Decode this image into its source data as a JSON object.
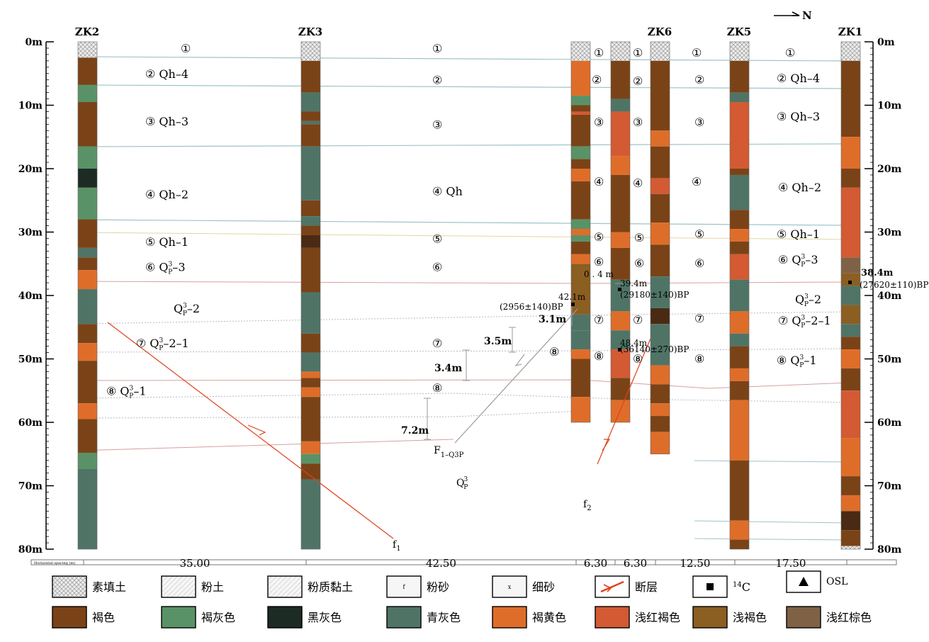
{
  "north_label": "N",
  "depth_ticks": [
    "0m",
    "10m",
    "20m",
    "30m",
    "40m",
    "50m",
    "60m",
    "70m",
    "80m"
  ],
  "boreholes": [
    {
      "id": "ZK2",
      "depth": 80,
      "segments": [
        [
          0,
          2.5,
          "fill"
        ],
        [
          2.5,
          6.8,
          "brown"
        ],
        [
          6.8,
          9.5,
          "greygreen"
        ],
        [
          9.5,
          16.5,
          "brown"
        ],
        [
          16.5,
          20,
          "greygreen"
        ],
        [
          20,
          23,
          "black"
        ],
        [
          23,
          28,
          "greygreen"
        ],
        [
          28,
          32.5,
          "brown"
        ],
        [
          32.5,
          34,
          "bluegrey"
        ],
        [
          34,
          36,
          "brown"
        ],
        [
          36,
          39,
          "yellowbrown"
        ],
        [
          39,
          44.5,
          "bluegrey"
        ],
        [
          44.5,
          47.5,
          "brown"
        ],
        [
          47.5,
          50.3,
          "yellowbrown"
        ],
        [
          50.3,
          57,
          "brown"
        ],
        [
          57,
          59.5,
          "yellowbrown"
        ],
        [
          59.5,
          64.8,
          "brown"
        ],
        [
          64.8,
          67.3,
          "greygreen"
        ],
        [
          67.3,
          80,
          "bluegrey"
        ]
      ]
    },
    {
      "id": "ZK3",
      "depth": 80,
      "segments": [
        [
          0,
          3,
          "fill"
        ],
        [
          3,
          8,
          "brown"
        ],
        [
          8,
          11,
          "bluegrey"
        ],
        [
          11,
          12.5,
          "brown"
        ],
        [
          12.5,
          13,
          "bluegrey"
        ],
        [
          13,
          16.5,
          "brown"
        ],
        [
          16.5,
          25,
          "bluegrey"
        ],
        [
          25,
          27.5,
          "brown"
        ],
        [
          27.5,
          29,
          "bluegrey"
        ],
        [
          29,
          30.5,
          "brown"
        ],
        [
          30.5,
          32.5,
          "darkbrown"
        ],
        [
          32.5,
          39.5,
          "brown"
        ],
        [
          39.5,
          46,
          "bluegrey"
        ],
        [
          46,
          49,
          "brown"
        ],
        [
          49,
          52,
          "bluegrey"
        ],
        [
          52,
          53,
          "yellowbrown"
        ],
        [
          53,
          54.5,
          "brown"
        ],
        [
          54.5,
          56,
          "yellowbrown"
        ],
        [
          56,
          63,
          "brown"
        ],
        [
          63,
          65,
          "yellowbrown"
        ],
        [
          65,
          66.5,
          "greygreen"
        ],
        [
          66.5,
          69,
          "brown"
        ],
        [
          69,
          80,
          "bluegrey"
        ]
      ]
    },
    {
      "id": "",
      "depth": 60,
      "segments": [
        [
          0,
          3,
          "fill"
        ],
        [
          3,
          8.5,
          "yellowbrown"
        ],
        [
          8.5,
          10,
          "greygreen"
        ],
        [
          10,
          11,
          "brown"
        ],
        [
          11,
          11.5,
          "redbrown"
        ],
        [
          11.5,
          16.5,
          "brown"
        ],
        [
          16.5,
          18.5,
          "greygreen"
        ],
        [
          18.5,
          20,
          "brown"
        ],
        [
          20,
          22,
          "yellowbrown"
        ],
        [
          22,
          28,
          "brown"
        ],
        [
          28,
          29.5,
          "greygreen"
        ],
        [
          29.5,
          30.5,
          "yellowbrown"
        ],
        [
          30.5,
          31.5,
          "greygreen"
        ],
        [
          31.5,
          33.5,
          "brown"
        ],
        [
          33.5,
          35,
          "yellowbrown"
        ],
        [
          35,
          43,
          "lightbrown"
        ],
        [
          43,
          45.5,
          "bluegrey"
        ],
        [
          45.5,
          48.5,
          "bluegrey"
        ],
        [
          48.5,
          50,
          "yellowbrown"
        ],
        [
          50,
          56,
          "brown"
        ],
        [
          56,
          60,
          "yellowbrown"
        ]
      ]
    },
    {
      "id": "",
      "depth": 60,
      "segments": [
        [
          0,
          3,
          "fill"
        ],
        [
          3,
          9,
          "brown"
        ],
        [
          9,
          11,
          "bluegrey"
        ],
        [
          11,
          18,
          "redbrown"
        ],
        [
          18,
          21,
          "yellowbrown"
        ],
        [
          21,
          30,
          "brown"
        ],
        [
          30,
          32.5,
          "yellowbrown"
        ],
        [
          32.5,
          37.5,
          "brown"
        ],
        [
          37.5,
          42.5,
          "bluegrey"
        ],
        [
          42.5,
          45.5,
          "yellowbrown"
        ],
        [
          45.5,
          48.5,
          "bluegrey"
        ],
        [
          48.5,
          53,
          "redbrown"
        ],
        [
          53,
          56.5,
          "brown"
        ],
        [
          56.5,
          60,
          "yellowbrown"
        ]
      ]
    },
    {
      "id": "ZK6",
      "depth": 65,
      "segments": [
        [
          0,
          3,
          "fill"
        ],
        [
          3,
          14,
          "brown"
        ],
        [
          14,
          16.5,
          "yellowbrown"
        ],
        [
          16.5,
          21.5,
          "brown"
        ],
        [
          21.5,
          24,
          "redbrown"
        ],
        [
          24,
          28.5,
          "brown"
        ],
        [
          28.5,
          32,
          "yellowbrown"
        ],
        [
          32,
          37,
          "brown"
        ],
        [
          37,
          42,
          "bluegrey"
        ],
        [
          42,
          44.5,
          "darkbrown"
        ],
        [
          44.5,
          51,
          "bluegrey"
        ],
        [
          51,
          54,
          "yellowbrown"
        ],
        [
          54,
          57,
          "brown"
        ],
        [
          57,
          59,
          "yellowbrown"
        ],
        [
          59,
          61.5,
          "brown"
        ],
        [
          61.5,
          65,
          "yellowbrown"
        ]
      ]
    },
    {
      "id": "ZK5",
      "depth": 80,
      "segments": [
        [
          0,
          3,
          "fill"
        ],
        [
          3,
          8,
          "brown"
        ],
        [
          8,
          9.5,
          "bluegrey"
        ],
        [
          9.5,
          20,
          "redbrown"
        ],
        [
          20,
          21,
          "brown"
        ],
        [
          21,
          26.5,
          "bluegrey"
        ],
        [
          26.5,
          29.5,
          "brown"
        ],
        [
          29.5,
          31.5,
          "yellowbrown"
        ],
        [
          31.5,
          33.5,
          "brown"
        ],
        [
          33.5,
          37.5,
          "redbrown"
        ],
        [
          37.5,
          42.5,
          "bluegrey"
        ],
        [
          42.5,
          46,
          "yellowbrown"
        ],
        [
          46,
          48,
          "bluegrey"
        ],
        [
          48,
          51.5,
          "brown"
        ],
        [
          51.5,
          53.5,
          "yellowbrown"
        ],
        [
          53.5,
          56.5,
          "brown"
        ],
        [
          56.5,
          66,
          "yellowbrown"
        ],
        [
          66,
          75.5,
          "brown"
        ],
        [
          75.5,
          78.5,
          "yellowbrown"
        ],
        [
          78.5,
          80,
          "brown"
        ]
      ]
    },
    {
      "id": "ZK1",
      "depth": 80,
      "segments": [
        [
          0,
          3,
          "fill"
        ],
        [
          3,
          15,
          "brown"
        ],
        [
          15,
          20,
          "yellowbrown"
        ],
        [
          20,
          23,
          "brown"
        ],
        [
          23,
          34,
          "redbrown"
        ],
        [
          34,
          36.5,
          "lightbrownred"
        ],
        [
          36.5,
          38.5,
          "lightbrown"
        ],
        [
          38.5,
          41.5,
          "bluegrey"
        ],
        [
          41.5,
          44.5,
          "lightbrown"
        ],
        [
          44.5,
          46.5,
          "bluegrey"
        ],
        [
          46.5,
          48.5,
          "brown"
        ],
        [
          48.5,
          51.5,
          "yellowbrown"
        ],
        [
          51.5,
          55,
          "brown"
        ],
        [
          55,
          62.5,
          "redbrown"
        ],
        [
          62.5,
          68.5,
          "yellowbrown"
        ],
        [
          68.5,
          71.5,
          "brown"
        ],
        [
          71.5,
          74,
          "yellowbrown"
        ],
        [
          74,
          77,
          "darkbrown"
        ],
        [
          77,
          79.5,
          "brown"
        ],
        [
          79.5,
          80,
          "fill"
        ]
      ]
    }
  ],
  "layer_labels": [
    {
      "id": "zk2-1",
      "depth": 1,
      "text": "①"
    },
    {
      "id": "zk2-2",
      "depth": 5,
      "text": "②  Qh–4"
    },
    {
      "id": "zk2-3",
      "depth": 12.5,
      "text": "③  Qh–3"
    },
    {
      "id": "zk2-4",
      "depth": 24,
      "text": "④  Qh–2"
    },
    {
      "id": "zk2-5",
      "depth": 31.5,
      "text": "⑤  Qh–1"
    },
    {
      "id": "zk2-6",
      "depth": 35.5,
      "text": "⑥  Q3P–3"
    },
    {
      "id": "zk2-7a",
      "depth": 42,
      "text": "Q3P–2"
    },
    {
      "id": "zk2-7",
      "depth": 47.5,
      "text": "⑦  Q3P–2–1"
    },
    {
      "id": "zk2-8",
      "depth": 55,
      "text": "⑧  Q3P–1"
    },
    {
      "id": "mid-1",
      "depth": 1,
      "text": "①"
    },
    {
      "id": "mid-2",
      "depth": 6,
      "text": "②"
    },
    {
      "id": "mid-3",
      "depth": 13,
      "text": "③"
    },
    {
      "id": "mid-4",
      "depth": 23.5,
      "text": "④  Qh"
    },
    {
      "id": "mid-5",
      "depth": 31,
      "text": "⑤"
    },
    {
      "id": "mid-6",
      "depth": 35.5,
      "text": "⑥"
    },
    {
      "id": "mid-7",
      "depth": 47.5,
      "text": "⑦"
    },
    {
      "id": "mid-8",
      "depth": 54.5,
      "text": "⑧"
    }
  ],
  "annotations": {
    "d_7_2": "7.2m",
    "d_3_4": "3.4m",
    "d_3_5": "3.5m",
    "d_3_1": "3.1m",
    "d_0_4": "0 . 4 m",
    "age_42": "42.1m",
    "age_42b": "(2956±140)BP",
    "age_39": "39.4m",
    "age_39b": "(29180±140)BP",
    "age_48": "48.4m",
    "age_48b": "(36140±270)BP",
    "age_38": "38.4m",
    "age_38b": "(27620±110)BP",
    "fault_f": "F",
    "fault_sub": "1–Q3P",
    "qp": "Q",
    "f1": "f",
    "f1_sub": "1",
    "f2": "f",
    "f2_sub": "2"
  },
  "spacing": {
    "caption": "Horizontal spacing  (m)",
    "values": [
      "35.00",
      "42.50",
      "6.30",
      "6.30",
      "12.50",
      "17.50"
    ]
  },
  "legend": [
    {
      "key": "fill",
      "label": "素填土",
      "color": "#e8e8e8"
    },
    {
      "key": "silt",
      "label": "粉土",
      "color": "#f4f4f4"
    },
    {
      "key": "siltclay",
      "label": "粉质黏土",
      "color": "#f0f0f0"
    },
    {
      "key": "siltsand",
      "label": "粉砂",
      "color": "#f6f6f6",
      "glyph": "f"
    },
    {
      "key": "finesand",
      "label": "细砂",
      "color": "#f6f6f6",
      "glyph": "x"
    },
    {
      "key": "fault",
      "label": "断层"
    },
    {
      "key": "c14",
      "label": "14C",
      "sup": "14",
      "main": "C"
    },
    {
      "key": "osl",
      "label": "OSL"
    },
    {
      "key": "brown",
      "label": "褐色",
      "color": "#7a4317"
    },
    {
      "key": "greygreen",
      "label": "褐灰色",
      "color": "#5a9267"
    },
    {
      "key": "black",
      "label": "黑灰色",
      "color": "#1d2b25"
    },
    {
      "key": "bluegrey",
      "label": "青灰色",
      "color": "#4f7466"
    },
    {
      "key": "yellowbrown",
      "label": "褐黄色",
      "color": "#df6d2a"
    },
    {
      "key": "redbrown",
      "label": "浅红褐色",
      "color": "#d35a32"
    },
    {
      "key": "lightbrown",
      "label": "浅褐色",
      "color": "#8b5e22"
    },
    {
      "key": "lightbrownred",
      "label": "浅红棕色",
      "color": "#7f6245"
    }
  ],
  "colors": {
    "brown": "#7a4317",
    "greygreen": "#5a9267",
    "black": "#1d2b25",
    "bluegrey": "#4f7466",
    "yellowbrown": "#df6d2a",
    "redbrown": "#d35a32",
    "lightbrown": "#8b5e22",
    "lightbrownred": "#7f6245",
    "darkbrown": "#4a2a14",
    "fill": "#e4e4e4",
    "fault": "#e0411b"
  }
}
